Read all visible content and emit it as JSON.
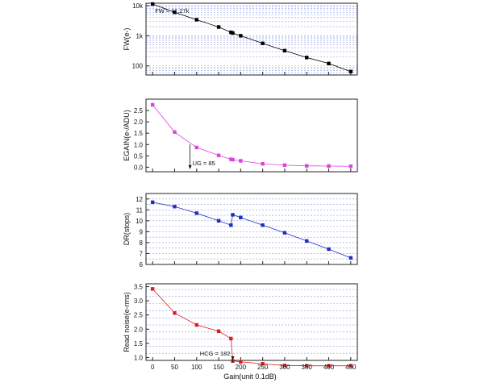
{
  "chart_data": [
    {
      "type": "line",
      "ylabel": "FW(e-)",
      "yscale": "log",
      "ylim": [
        50,
        12000
      ],
      "yticks": [
        100,
        1000,
        10000
      ],
      "ytick_labels": [
        "100",
        "1k",
        "10k"
      ],
      "grid": true,
      "color": "#000000",
      "series": [
        {
          "x": [
            0,
            50,
            100,
            150,
            178,
            182,
            200,
            250,
            300,
            350,
            400,
            450
          ],
          "y": [
            11270,
            6000,
            3400,
            1950,
            1300,
            1230,
            1000,
            560,
            320,
            190,
            120,
            65
          ]
        }
      ],
      "annotations": [
        {
          "text": "FW = 11.27k",
          "x": 0,
          "y": 11270
        }
      ]
    },
    {
      "type": "line",
      "ylabel": "EGAIN(e-/ADU)",
      "ylim": [
        -0.2,
        3.0
      ],
      "yticks": [
        0.0,
        0.5,
        1.0,
        1.5,
        2.0,
        2.5
      ],
      "ytick_labels": [
        "0.0",
        "0.5",
        "1.0",
        "1.5",
        "2.0",
        "2.5"
      ],
      "grid": false,
      "color": "#e040e0",
      "series": [
        {
          "x": [
            0,
            50,
            100,
            150,
            178,
            182,
            200,
            250,
            300,
            350,
            400,
            450
          ],
          "y": [
            2.75,
            1.55,
            0.87,
            0.52,
            0.35,
            0.33,
            0.28,
            0.15,
            0.09,
            0.06,
            0.05,
            0.04
          ]
        }
      ],
      "annotations": [
        {
          "text": "UG = 85",
          "x": 85,
          "y": 0.87
        }
      ]
    },
    {
      "type": "line",
      "ylabel": "DR(stops)",
      "ylim": [
        6,
        12.5
      ],
      "yticks": [
        6,
        7,
        8,
        9,
        10,
        11,
        12
      ],
      "ytick_labels": [
        "6",
        "7",
        "8",
        "9",
        "10",
        "11",
        "12"
      ],
      "grid": true,
      "color": "#1f2fc0",
      "series": [
        {
          "x": [
            0,
            50,
            100,
            150,
            178,
            182,
            200,
            250,
            300,
            350,
            400,
            450
          ],
          "y": [
            11.7,
            11.3,
            10.7,
            10.0,
            9.6,
            10.55,
            10.3,
            9.6,
            8.9,
            8.15,
            7.4,
            6.6
          ]
        }
      ],
      "annotations": []
    },
    {
      "type": "line",
      "ylabel": "Read noise(e-rms)",
      "ylim": [
        0.9,
        3.6
      ],
      "yticks": [
        1.0,
        1.5,
        2.0,
        2.5,
        3.0,
        3.5
      ],
      "ytick_labels": [
        "1.0",
        "1.5",
        "2.0",
        "2.5",
        "3.0",
        "3.5"
      ],
      "grid": true,
      "color": "#dd1e1e",
      "series": [
        {
          "x": [
            0,
            50,
            100,
            150,
            178,
            182,
            200,
            250,
            300,
            350,
            400,
            450
          ],
          "y": [
            3.42,
            2.57,
            2.15,
            1.93,
            1.67,
            0.88,
            0.85,
            0.78,
            0.72,
            0.71,
            0.71,
            0.71
          ]
        }
      ],
      "annotations": [
        {
          "text": "HCG = 182",
          "x": 182,
          "y": 0.88
        }
      ]
    }
  ],
  "x_axis": {
    "label": "Gain(unit 0.1dB)",
    "xlim": [
      -15,
      465
    ],
    "ticks": [
      0,
      50,
      100,
      150,
      200,
      250,
      300,
      350,
      400,
      450
    ],
    "tick_labels": [
      "0",
      "50",
      "100",
      "150",
      "200",
      "250",
      "300",
      "350",
      "400",
      "450"
    ]
  }
}
